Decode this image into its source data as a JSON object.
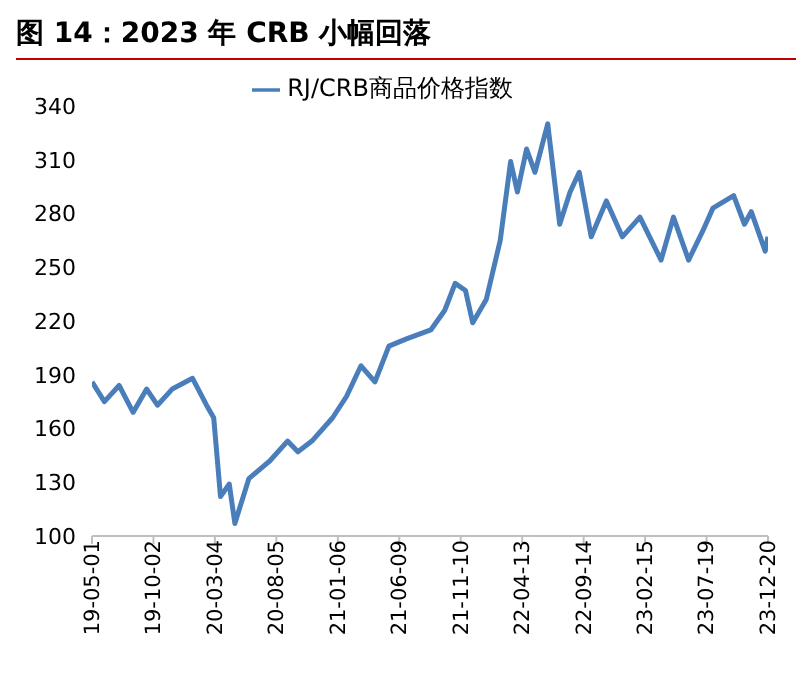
{
  "chart_data": {
    "type": "line",
    "title": "图 14：2023 年 CRB 小幅回落",
    "x": [
      "2019-05-01",
      "2019-06-01",
      "2019-07-08",
      "2019-08-12",
      "2019-09-15",
      "2019-10-12",
      "2019-11-18",
      "2020-01-08",
      "2020-02-12",
      "2020-03-01",
      "2020-03-18",
      "2020-04-09",
      "2020-04-23",
      "2020-05-28",
      "2020-07-20",
      "2020-09-02",
      "2020-09-28",
      "2020-11-02",
      "2020-12-24",
      "2021-01-28",
      "2021-03-05",
      "2021-04-09",
      "2021-05-14",
      "2021-06-27",
      "2021-08-27",
      "2021-10-01",
      "2021-10-27",
      "2021-11-22",
      "2021-12-10",
      "2022-01-13",
      "2022-02-17",
      "2022-03-15",
      "2022-04-01",
      "2022-04-24",
      "2022-05-15",
      "2022-06-16",
      "2022-07-16",
      "2022-08-11",
      "2022-09-03",
      "2022-10-03",
      "2022-11-10",
      "2022-12-20",
      "2023-02-02",
      "2023-03-27",
      "2023-04-27",
      "2023-06-04",
      "2023-07-09",
      "2023-08-04",
      "2023-09-25",
      "2023-10-22",
      "2023-11-08",
      "2023-12-13",
      "2023-12-20"
    ],
    "series": [
      {
        "name": "RJ/CRB商品价格指数",
        "color": "#4a7ebb",
        "values": [
          186,
          175,
          184,
          169,
          182,
          173,
          182,
          188,
          173,
          166,
          122,
          129,
          107,
          132,
          142,
          153,
          147,
          153,
          166,
          178,
          195,
          186,
          206,
          210,
          215,
          226,
          241,
          237,
          219,
          232,
          265,
          309,
          292,
          316,
          303,
          330,
          274,
          292,
          303,
          267,
          287,
          267,
          278,
          254,
          278,
          254,
          270,
          283,
          290,
          274,
          281,
          259,
          267
        ]
      }
    ],
    "xlim": [
      "2019-05-01",
      "2023-12-20"
    ],
    "xticks": [
      {
        "value": "2019-05-01",
        "label": "19-05-01"
      },
      {
        "value": "2019-10-02",
        "label": "19-10-02"
      },
      {
        "value": "2020-03-04",
        "label": "20-03-04"
      },
      {
        "value": "2020-08-05",
        "label": "20-08-05"
      },
      {
        "value": "2021-01-06",
        "label": "21-01-06"
      },
      {
        "value": "2021-06-09",
        "label": "21-06-09"
      },
      {
        "value": "2021-11-10",
        "label": "21-11-10"
      },
      {
        "value": "2022-04-13",
        "label": "22-04-13"
      },
      {
        "value": "2022-09-14",
        "label": "22-09-14"
      },
      {
        "value": "2023-02-15",
        "label": "23-02-15"
      },
      {
        "value": "2023-07-19",
        "label": "23-07-19"
      },
      {
        "value": "2023-12-20",
        "label": "23-12-20"
      }
    ],
    "ylim": [
      100,
      340
    ],
    "yticks": [
      100,
      130,
      160,
      190,
      220,
      250,
      280,
      310,
      340
    ],
    "grid": false,
    "legend": "top",
    "marker": "none",
    "line_style": "solid"
  }
}
